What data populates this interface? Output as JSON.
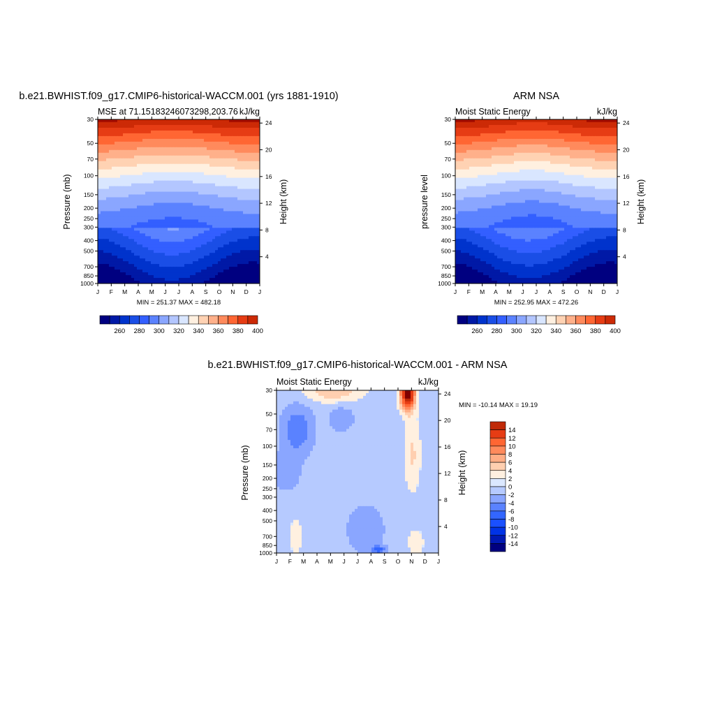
{
  "colors": {
    "palette_17": [
      "#000080",
      "#0019a6",
      "#0033cc",
      "#1a4ee6",
      "#335fff",
      "#5b82ff",
      "#8aa6ff",
      "#b3c6ff",
      "#d9e6ff",
      "#fff0e0",
      "#ffd2b3",
      "#ffb08a",
      "#ff8a5c",
      "#ff6633",
      "#e63c14",
      "#cc2a06",
      "#a60f00",
      "#800000"
    ],
    "diff_palette": [
      "#000080",
      "#0019b3",
      "#0033e6",
      "#1a50ff",
      "#3366ff",
      "#5a82ff",
      "#8aa6ff",
      "#b6caff",
      "#dbe8ff",
      "#fff0e0",
      "#ffcfb0",
      "#ffad85",
      "#ff8a5c",
      "#ff6633",
      "#e63c14",
      "#c02a08",
      "#800000"
    ]
  },
  "chart_data": [
    {
      "type": "heatmap",
      "id": "model",
      "title": "b.e21.BWHIST.f09_g17.CMIP6-historical-WACCM.001 (yrs 1881-1910)",
      "left_subtitle": "MSE at 71.15183246073298,203.76",
      "right_subtitle": "kJ/kg",
      "ylabel": "Pressure (mb)",
      "ylabel_right": "Height (km)",
      "x_ticks": [
        "J",
        "F",
        "M",
        "A",
        "M",
        "J",
        "J",
        "A",
        "S",
        "O",
        "N",
        "D",
        "J"
      ],
      "y_ticks": [
        "30",
        "50",
        "70",
        "100",
        "150",
        "200",
        "250",
        "300",
        "400",
        "500",
        "700",
        "850",
        "1000"
      ],
      "y_right_ticks": [
        "24",
        "20",
        "16",
        "12",
        "8",
        "4"
      ],
      "minmax": "MIN = 251.37 MAX = 482.18",
      "colorbar_labels": [
        "260",
        "280",
        "300",
        "320",
        "340",
        "360",
        "380",
        "400"
      ],
      "levels": [
        250,
        260,
        270,
        280,
        290,
        300,
        310,
        320,
        330,
        340,
        350,
        360,
        370,
        380,
        390,
        400,
        410
      ],
      "min": 251.37,
      "max": 482.18
    },
    {
      "type": "heatmap",
      "id": "obs",
      "title": "ARM NSA",
      "left_subtitle": "Moist Static Energy",
      "right_subtitle": "kJ/kg",
      "ylabel": "pressure level",
      "ylabel_right": "Height (km)",
      "x_ticks": [
        "J",
        "F",
        "M",
        "A",
        "M",
        "J",
        "J",
        "A",
        "S",
        "O",
        "N",
        "D",
        "J"
      ],
      "y_ticks": [
        "30",
        "50",
        "70",
        "100",
        "150",
        "200",
        "250",
        "300",
        "400",
        "500",
        "700",
        "850",
        "1000"
      ],
      "y_right_ticks": [
        "24",
        "20",
        "16",
        "12",
        "8",
        "4"
      ],
      "minmax": "MIN = 252.95 MAX = 472.26",
      "colorbar_labels": [
        "260",
        "280",
        "300",
        "320",
        "340",
        "360",
        "380",
        "400"
      ],
      "min": 252.95,
      "max": 472.26
    },
    {
      "type": "heatmap",
      "id": "diff",
      "title": "b.e21.BWHIST.f09_g17.CMIP6-historical-WACCM.001 - ARM NSA",
      "left_subtitle": "Moist Static Energy",
      "right_subtitle": "kJ/kg",
      "ylabel": "Pressure (mb)",
      "ylabel_right": "Height (km)",
      "x_ticks": [
        "J",
        "F",
        "M",
        "A",
        "M",
        "J",
        "J",
        "A",
        "S",
        "O",
        "N",
        "D",
        "J"
      ],
      "y_ticks": [
        "30",
        "50",
        "70",
        "100",
        "150",
        "200",
        "250",
        "300",
        "400",
        "500",
        "700",
        "850",
        "1000"
      ],
      "y_right_ticks": [
        "24",
        "20",
        "16",
        "12",
        "8",
        "4"
      ],
      "minmax": "MIN = -10.14 MAX =  19.19",
      "colorbar_labels": [
        "14",
        "12",
        "10",
        "8",
        "6",
        "4",
        "2",
        "0",
        "-2",
        "-4",
        "-6",
        "-8",
        "-10",
        "-12",
        "-14"
      ],
      "min": -10.14,
      "max": 19.19
    }
  ]
}
